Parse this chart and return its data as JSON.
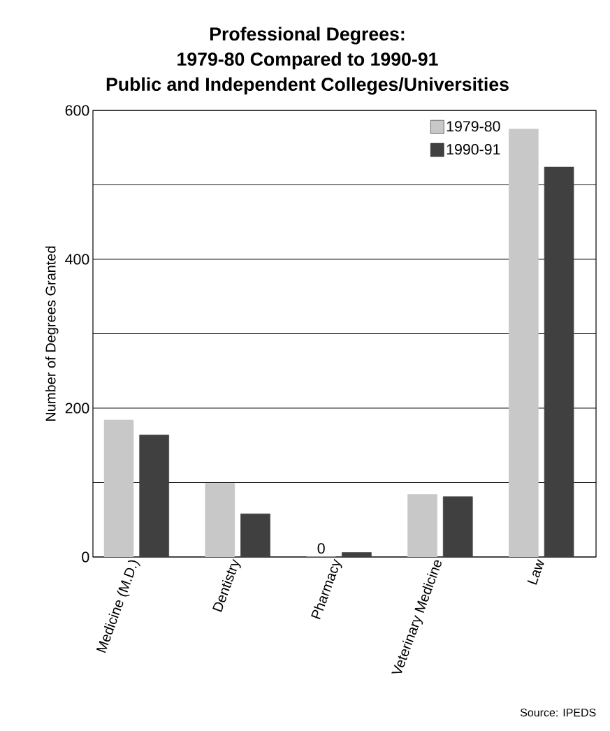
{
  "chart_data": {
    "type": "bar",
    "title": "Professional Degrees:\n1979-80 Compared to 1990-91\nPublic and Independent Colleges/Universities",
    "ylabel": "Number of Degrees Granted",
    "categories": [
      "Medicine (M.D.)",
      "Dentistry",
      "Pharmacy",
      "Veterinary Medicine",
      "Law"
    ],
    "series": [
      {
        "name": "1979-80",
        "color": "#c8c8c8",
        "values": [
          184,
          99,
          0,
          84,
          575
        ],
        "value_labels": [
          null,
          null,
          "0",
          null,
          null
        ]
      },
      {
        "name": "1990-91",
        "color": "#404040",
        "values": [
          164,
          58,
          6,
          81,
          524
        ]
      }
    ],
    "ylim": [
      0,
      600
    ],
    "yticks": [
      0,
      {
        "value": 100,
        "label": null
      },
      200,
      {
        "value": 300,
        "label": null
      },
      400,
      {
        "value": 500,
        "label": null
      },
      600
    ],
    "grid": "y",
    "legend": "top right",
    "annotations": [
      "Source:  IPEDS"
    ]
  }
}
